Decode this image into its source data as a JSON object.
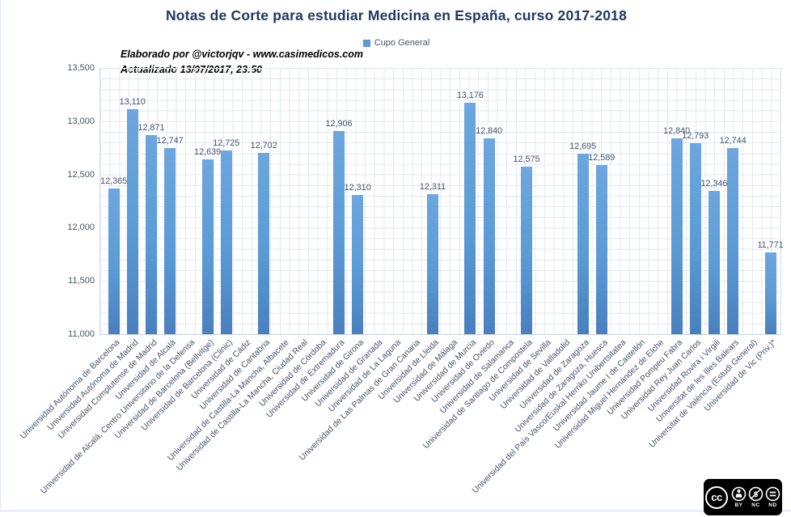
{
  "chart_data": {
    "type": "bar",
    "title": "Notas de Corte para estudiar Medicina en España, curso 2017-2018",
    "legend": [
      "Cupo General"
    ],
    "annotations": [
      "Elaborado por @victorjqv - www.casimedicos.com",
      "Actualizado 13/07/2017, 23:50"
    ],
    "ylim": [
      11000,
      13500
    ],
    "ytick_step": 500,
    "ytick_labels": [
      "11,000",
      "11,500",
      "12,000",
      "12,500",
      "13,000",
      "13,500"
    ],
    "grid": "both",
    "legend_position": "top-center",
    "categories": [
      "Universidad Autónoma de Barcelona",
      "Universidad Autónoma de Madrid",
      "Universidad Complutense de Madrid",
      "Universidad de Alcalá",
      "Universidad de Alcalá, Centro Universitario de la Defensa",
      "Universidad de Barcelona (Bellvitge)",
      "Universidad de Barcelona (Clinic)",
      "Universidad de Cádiz",
      "Universidad de Cantabria",
      "Universidad de Castilla-La Mancha, Albacete",
      "Universidad de Castilla-La Mancha, Ciudad Real",
      "Universidad de Córdoba",
      "Universidad de Extremadura",
      "Universidad de Girona",
      "Universidad de Granada",
      "Universidad de La Laguna",
      "Universidad de Las Palmas de Gran Canaria",
      "Universidad de Lleida",
      "Universidad de Málaga",
      "Universidad de Murcia",
      "Universidad de Oviedo",
      "Universidad de Salamanca",
      "Universidad de Santiago de Compostela",
      "Universidad de Sevilla",
      "Universidad de Valladolid",
      "Universidad de Zaragoza",
      "Universidad de Zaragoza, Huesca",
      "Universidad del País Vasco/Euskal Herriko Unibertsitatea",
      "Universidad Jaume I de Castellón",
      "Universidad Miguel Hernández de Elche",
      "Universidad Pompeu Fabra",
      "Universidad Rey Juan Carlos",
      "Universidad Rovira i Virgili",
      "Universitat de les Illes Balears",
      "Universitat de València (Estudi General)",
      "Universidad de Vic (Priv.)*"
    ],
    "values": [
      12365,
      13110,
      12871,
      12747,
      null,
      12639,
      12725,
      null,
      12702,
      null,
      null,
      null,
      12906,
      12310,
      null,
      null,
      null,
      12311,
      null,
      13176,
      12840,
      null,
      12575,
      null,
      null,
      12695,
      12589,
      null,
      null,
      null,
      12840,
      12793,
      12346,
      12744,
      null,
      11771
    ],
    "colors": {
      "bar": "#5b9bd5",
      "bar_gradient_top": "#6ea6de",
      "bar_gradient_bottom": "#4a7fbe",
      "title": "#1f3864",
      "labels": "#44546a",
      "grid": "#e1e9f4"
    }
  },
  "license": {
    "name": "CC BY-NC-ND",
    "logo_text": "cc",
    "labels": [
      "BY",
      "NC",
      "ND"
    ]
  }
}
